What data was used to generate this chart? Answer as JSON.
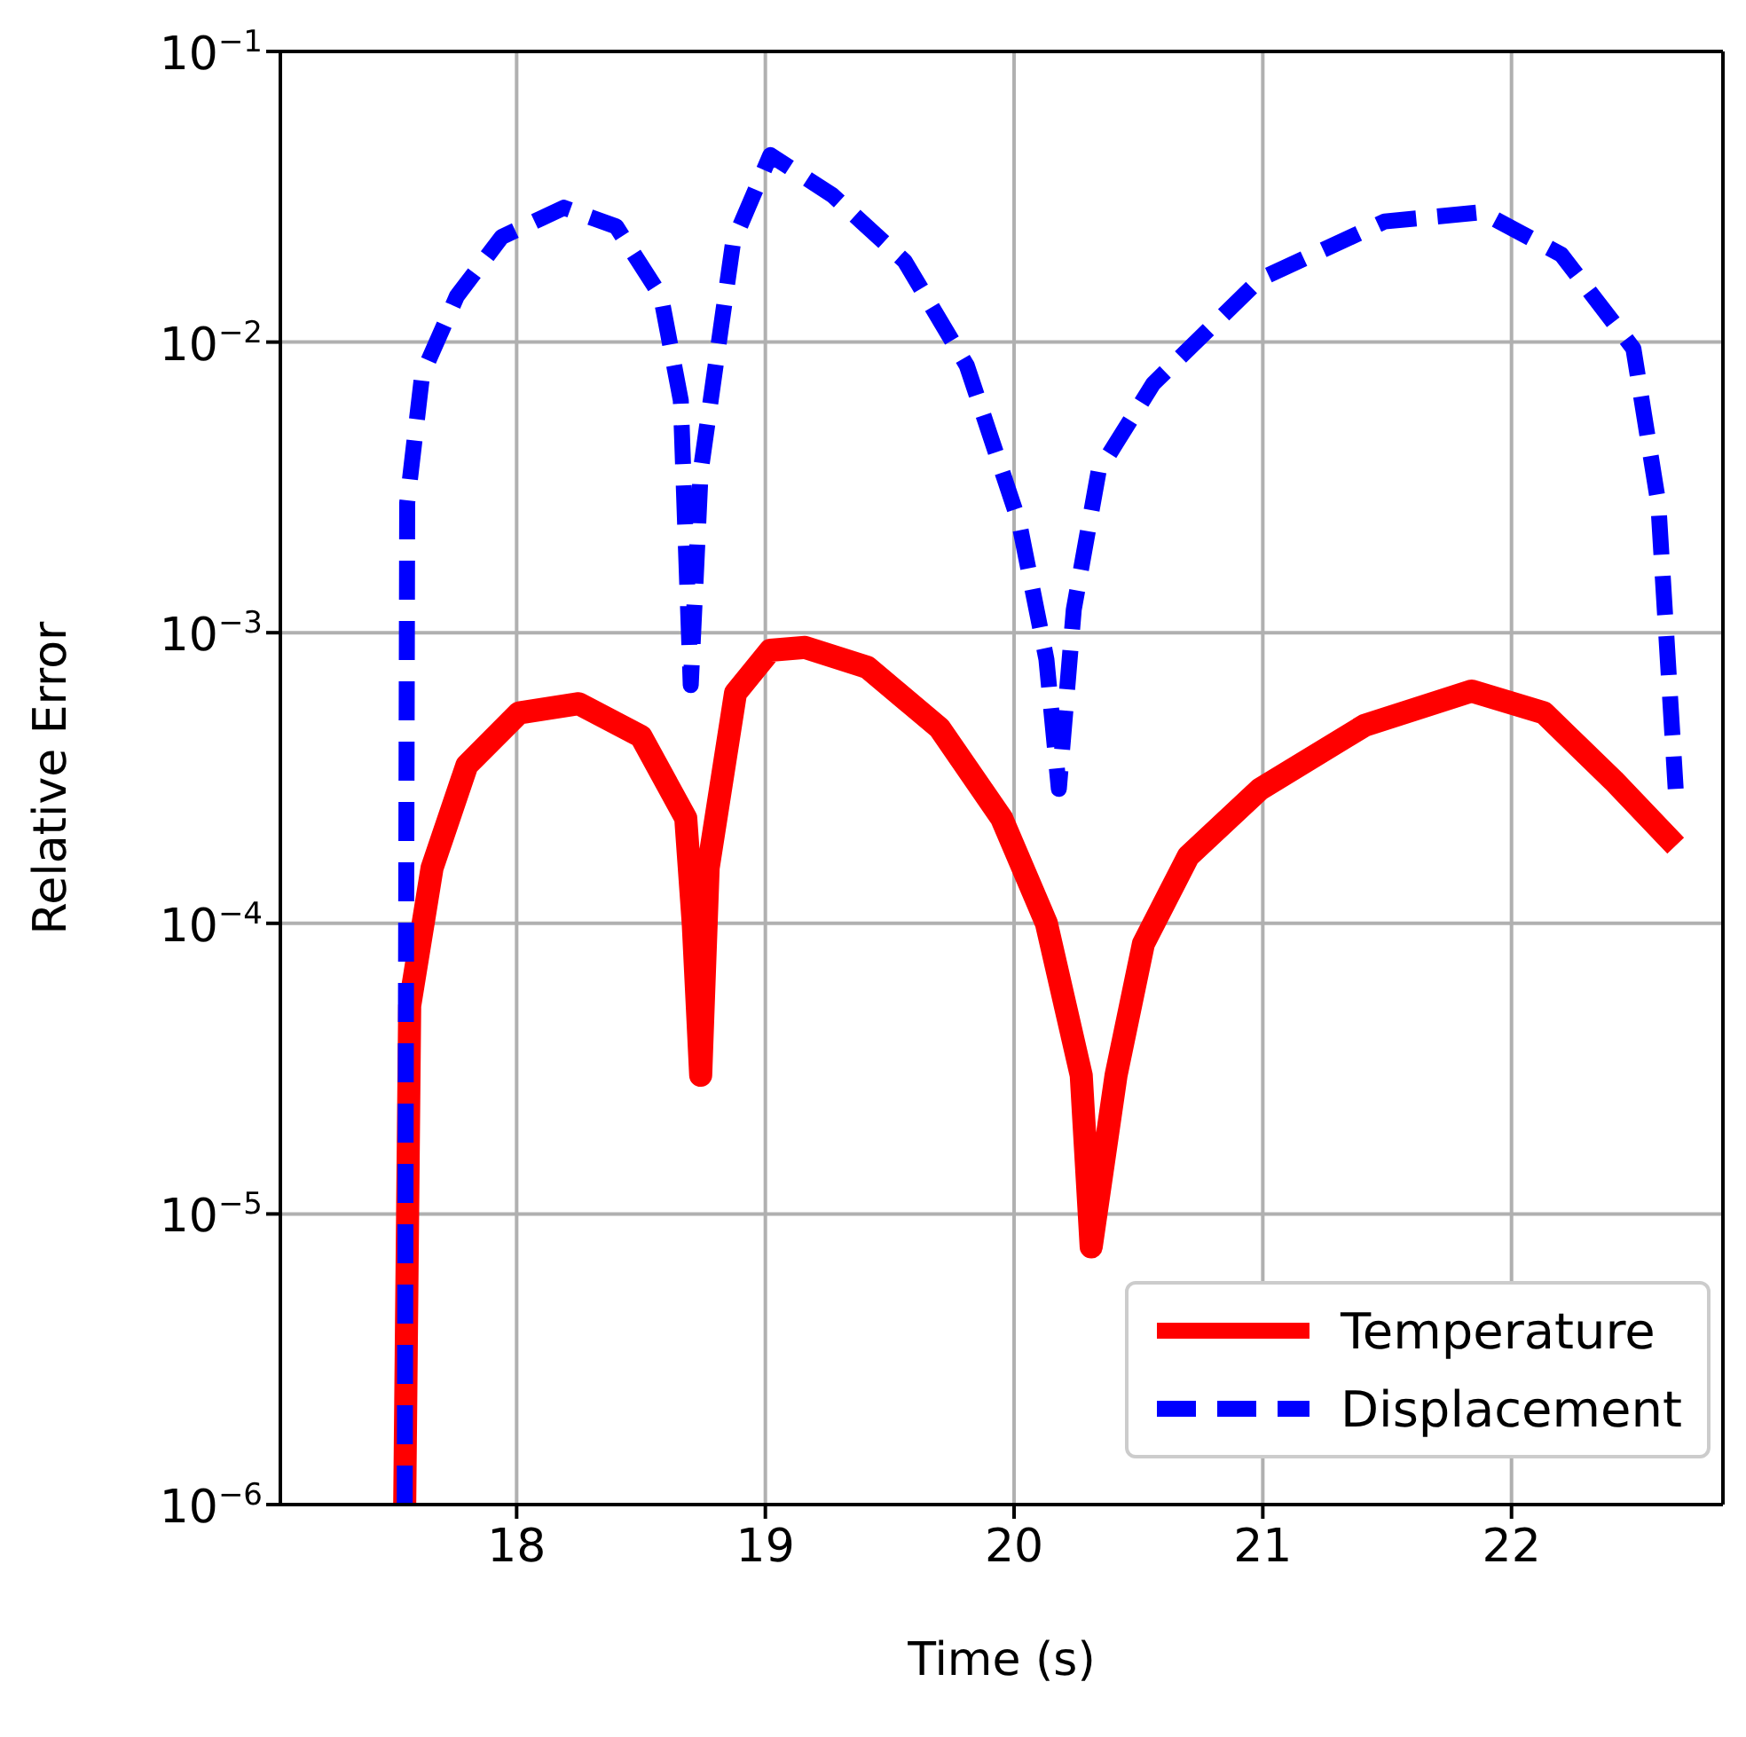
{
  "chart_data": {
    "type": "line",
    "xlabel": "Time (s)",
    "ylabel": "Relative Error",
    "log": "y",
    "grid": true,
    "legend": "bottom right",
    "xlim": [
      17.05,
      22.85
    ],
    "xticks": [
      18,
      19,
      20,
      21,
      22
    ],
    "ylim": [
      1e-06,
      0.1
    ],
    "yticks": [
      {
        "value": 1e-06,
        "label": "10$^{−6}$"
      },
      {
        "value": 1e-05,
        "label": "10$^{−5}$"
      },
      {
        "value": 0.0001,
        "label": "10$^{−4}$"
      },
      {
        "value": 0.001,
        "label": "10$^{−3}$"
      },
      {
        "value": 0.01,
        "label": "10$^{−2}$"
      },
      {
        "value": 0.1,
        "label": "10$^{−1}$"
      }
    ],
    "series": [
      {
        "name": "Temperature",
        "color": "#ff0000",
        "line_style": "solid",
        "x": [
          17.55,
          17.57,
          17.66,
          17.8,
          18.01,
          18.25,
          18.5,
          18.68,
          18.71,
          18.74,
          18.77,
          18.88,
          19.02,
          19.16,
          19.41,
          19.7,
          19.95,
          20.13,
          20.27,
          20.31,
          20.41,
          20.52,
          20.7,
          20.99,
          21.41,
          21.84,
          22.13,
          22.41,
          22.66
        ],
        "values": [
          1e-06,
          5.2e-05,
          0.000155,
          0.00035,
          0.00053,
          0.00057,
          0.00044,
          0.00023,
          0.0001,
          3e-05,
          0.000155,
          0.00062,
          0.00087,
          0.00089,
          0.00076,
          0.00047,
          0.00023,
          0.0001,
          3e-05,
          7.7e-06,
          3e-05,
          8.5e-05,
          0.00017,
          0.00029,
          0.00048,
          0.00063,
          0.00053,
          0.00031,
          0.000185
        ]
      },
      {
        "name": "Displacement",
        "color": "#0000ff",
        "line_style": "dashed",
        "x": [
          17.55,
          17.56,
          17.62,
          17.76,
          17.94,
          18.19,
          18.4,
          18.58,
          18.66,
          18.7,
          18.74,
          18.87,
          19.02,
          19.27,
          19.56,
          19.81,
          20.02,
          20.13,
          20.18,
          20.24,
          20.34,
          20.56,
          20.99,
          21.49,
          21.88,
          22.2,
          22.49,
          22.59,
          22.66
        ],
        "values": [
          1e-06,
          0.0028,
          0.0077,
          0.0144,
          0.023,
          0.029,
          0.025,
          0.0144,
          0.0063,
          0.00066,
          0.0036,
          0.022,
          0.044,
          0.032,
          0.019,
          0.0083,
          0.0024,
          0.00081,
          0.00029,
          0.0012,
          0.0036,
          0.0072,
          0.0165,
          0.026,
          0.028,
          0.02,
          0.0095,
          0.0028,
          0.00029
        ]
      }
    ]
  }
}
